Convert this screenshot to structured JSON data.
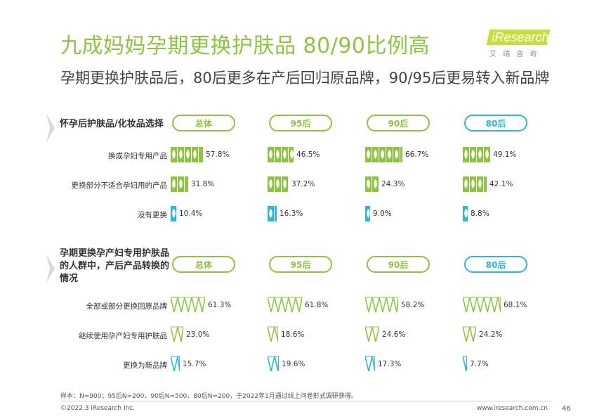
{
  "title": "九成妈妈孕期更换护肤品 80/90比例高",
  "subtitle": "孕期更换护肤品后，80后更多在产后回归原品牌，90/95后更易转入新品牌",
  "logo": {
    "text": "iResearch",
    "sub": "艾瑞咨询"
  },
  "colors": {
    "green": "#8cc63f",
    "blue": "#29b6e8",
    "lime": "#c7df3b",
    "gray_arrow": "#d9d9d9"
  },
  "icons": {
    "section_marker": "gray-chevron-icon",
    "part1_bar": "leaf-pictogram-icon",
    "part2_bar": "zigzag-pictogram-icon"
  },
  "groups": [
    "总体",
    "95后",
    "90后",
    "80后"
  ],
  "chart_data": [
    {
      "type": "bar",
      "title": "怀孕后护肤品/化妆品选择",
      "categories": [
        "换成孕妇专用产品",
        "更换部分不适合孕妇用的产品",
        "没有更换"
      ],
      "unit": "%",
      "series": [
        {
          "name": "总体",
          "values": [
            57.8,
            31.8,
            10.4
          ],
          "labels": [
            "57.8%",
            "31.8%",
            "10.4%"
          ]
        },
        {
          "name": "95后",
          "values": [
            46.5,
            37.2,
            16.3
          ],
          "labels": [
            "46.5%",
            "37.2%",
            "16.3%"
          ]
        },
        {
          "name": "90后",
          "values": [
            66.7,
            24.3,
            9.0
          ],
          "labels": [
            "66.7%",
            "24.3%",
            "9.0%"
          ]
        },
        {
          "name": "80后",
          "values": [
            49.1,
            42.1,
            8.8
          ],
          "labels": [
            "49.1%",
            "42.1%",
            "8.8%"
          ]
        }
      ]
    },
    {
      "type": "bar",
      "title": "孕期更换孕产妇专用护肤品的人群中，产后产品转换的情况",
      "categories": [
        "全部或部分更换回原品牌",
        "继续使用孕产妇专用护肤品",
        "更换为新品牌"
      ],
      "unit": "%",
      "series": [
        {
          "name": "总体",
          "values": [
            61.3,
            23.0,
            15.7
          ],
          "labels": [
            "61.3%",
            "23.0%",
            "15.7%"
          ]
        },
        {
          "name": "95后",
          "values": [
            61.8,
            18.6,
            19.6
          ],
          "labels": [
            "61.8%",
            "18.6%",
            "19.6%"
          ]
        },
        {
          "name": "90后",
          "values": [
            58.2,
            24.6,
            17.3
          ],
          "labels": [
            "58.2%",
            "24.6%",
            "17.3%"
          ]
        },
        {
          "name": "80后",
          "values": [
            68.1,
            24.2,
            7.7
          ],
          "labels": [
            "68.1%",
            "24.2%",
            "7.7%"
          ]
        }
      ]
    }
  ],
  "footnote": "样本：N=900；95后N=200，90后N=500，80后N=200，于2022年1月通过线上问卷形式调研获得。",
  "copyright": "©2022.3 iResearch Inc.",
  "site": "www.iresearch.com.cn",
  "page_number": "46"
}
